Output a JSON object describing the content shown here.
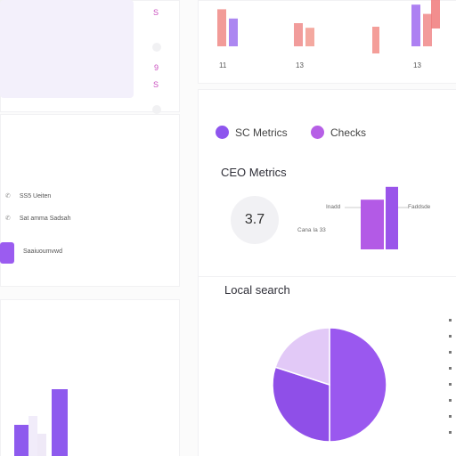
{
  "sidebar": {
    "list": [
      {
        "label": "SS5 Ueiten",
        "icon": "phone-icon"
      },
      {
        "label": "Sat amma Sadsah",
        "icon": "phone-icon"
      },
      {
        "label": "Saaiuoumvwd",
        "icon": "square-icon"
      }
    ],
    "icon_numbers": [
      "S",
      "9",
      "S",
      "9",
      "9",
      "9"
    ]
  },
  "top_bar_chart": {
    "x_labels": [
      "11",
      "13",
      "13"
    ]
  },
  "legend": [
    {
      "label": "SC Metrics",
      "color": "#8e55ee"
    },
    {
      "label": "Checks",
      "color": "#b65fe6"
    }
  ],
  "ceo": {
    "title": "CEO Metrics",
    "metric_value": "3.7",
    "labels": {
      "left": "Inadd",
      "right": "Faddsde",
      "bottom": "Cana Ia 33"
    }
  },
  "local_search": {
    "title": "Local search"
  },
  "colors": {
    "accent": "#9b5cf0",
    "accent2": "#b35ae6",
    "coral": "#f07a7a",
    "lavender": "#d7c5f2"
  },
  "chart_data": [
    {
      "type": "bar",
      "categories": [
        "11",
        "13",
        "13"
      ],
      "series": [
        {
          "values": [
            0.8,
            0.5,
            0.9
          ]
        },
        {
          "values": [
            0.6,
            0.4,
            0.7
          ]
        }
      ]
    },
    {
      "type": "bar",
      "categories": [
        "Inadd",
        "Faddsde"
      ],
      "values": [
        0.62,
        0.78
      ]
    },
    {
      "type": "pie",
      "values": [
        50,
        30,
        20
      ]
    },
    {
      "type": "bar",
      "values": [
        0.35,
        0.45,
        0.25,
        0.75
      ]
    }
  ]
}
